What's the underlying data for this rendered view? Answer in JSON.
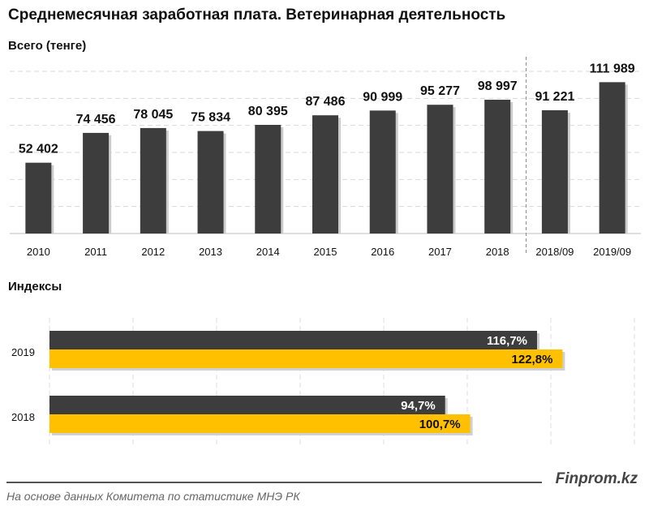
{
  "title": "Среднемесячная заработная плата. Ветеринарная деятельность",
  "footer": {
    "brand": "Finprom.kz",
    "source": "На основе данных  Комитета по статистике МНЭ РК"
  },
  "chart_data": [
    {
      "type": "bar",
      "title": "Всего (тенге)",
      "categories": [
        "2010",
        "2011",
        "2012",
        "2013",
        "2014",
        "2015",
        "2016",
        "2017",
        "2018",
        "2018/09",
        "2019/09"
      ],
      "values": [
        52402,
        74456,
        78045,
        75834,
        80395,
        87486,
        90999,
        95277,
        98997,
        91221,
        111989
      ],
      "labels": [
        "52 402",
        "74 456",
        "78 045",
        "75 834",
        "80 395",
        "87 486",
        "90 999",
        "95 277",
        "98 997",
        "91 221",
        "111 989"
      ],
      "ylim": [
        0,
        120000
      ],
      "grid": true,
      "color": "#3d3d3d"
    },
    {
      "type": "bar",
      "orientation": "horizontal",
      "title": "Индексы",
      "categories": [
        "2019",
        "2018"
      ],
      "series": [
        {
          "values": [
            116.7,
            94.7
          ],
          "labels": [
            "116,7%",
            "94,7%"
          ],
          "color": "#3d3d3d"
        },
        {
          "values": [
            122.8,
            100.7
          ],
          "labels": [
            "122,8%",
            "100,7%"
          ],
          "color": "#ffc000"
        }
      ],
      "xlim": [
        0,
        140
      ],
      "grid": true
    }
  ]
}
